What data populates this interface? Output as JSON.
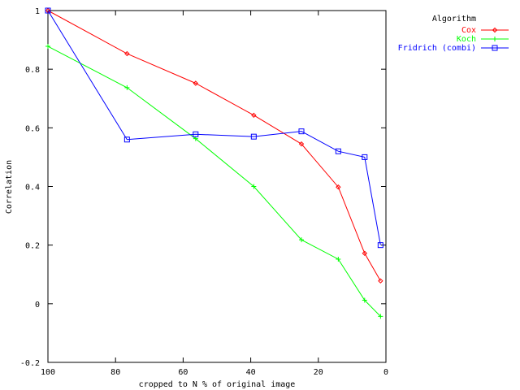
{
  "chart_data": {
    "type": "line",
    "xlabel": "cropped to N % of original image",
    "ylabel": "Correlation",
    "xlim": [
      100,
      0
    ],
    "ylim": [
      -0.2,
      1
    ],
    "x_ticks": [
      "100",
      "80",
      "60",
      "40",
      "20",
      "0"
    ],
    "y_ticks": [
      "1",
      "0.8",
      "0.6",
      "0.4",
      "0.2",
      "0",
      "-0.2"
    ],
    "x_tick_values": [
      100,
      80,
      60,
      40,
      20,
      0
    ],
    "y_tick_values": [
      1,
      0.8,
      0.6,
      0.4,
      0.2,
      0,
      -0.2
    ],
    "grid": false,
    "legend_title": "Algorithm",
    "legend_position": "top-right, outside plot",
    "series": [
      {
        "name": "Cox",
        "color": "#ff0000",
        "marker": "diamond",
        "points": [
          [
            100,
            1.0
          ],
          [
            76.6,
            0.853
          ],
          [
            56.3,
            0.752
          ],
          [
            39.1,
            0.643
          ],
          [
            25.0,
            0.545
          ],
          [
            14.1,
            0.398
          ],
          [
            6.3,
            0.172
          ],
          [
            1.6,
            0.078
          ]
        ]
      },
      {
        "name": "Koch",
        "color": "#00ff00",
        "marker": "plus",
        "points": [
          [
            100,
            0.878
          ],
          [
            76.6,
            0.737
          ],
          [
            56.3,
            0.563
          ],
          [
            39.1,
            0.4
          ],
          [
            25.0,
            0.218
          ],
          [
            14.1,
            0.152
          ],
          [
            6.3,
            0.012
          ],
          [
            1.6,
            -0.043
          ]
        ]
      },
      {
        "name": "Fridrich (combi)",
        "color": "#0000ff",
        "marker": "square",
        "points": [
          [
            100,
            1.0
          ],
          [
            76.6,
            0.56
          ],
          [
            56.3,
            0.578
          ],
          [
            39.1,
            0.57
          ],
          [
            25.0,
            0.588
          ],
          [
            14.1,
            0.52
          ],
          [
            6.3,
            0.5
          ],
          [
            1.6,
            0.2
          ]
        ]
      }
    ]
  }
}
